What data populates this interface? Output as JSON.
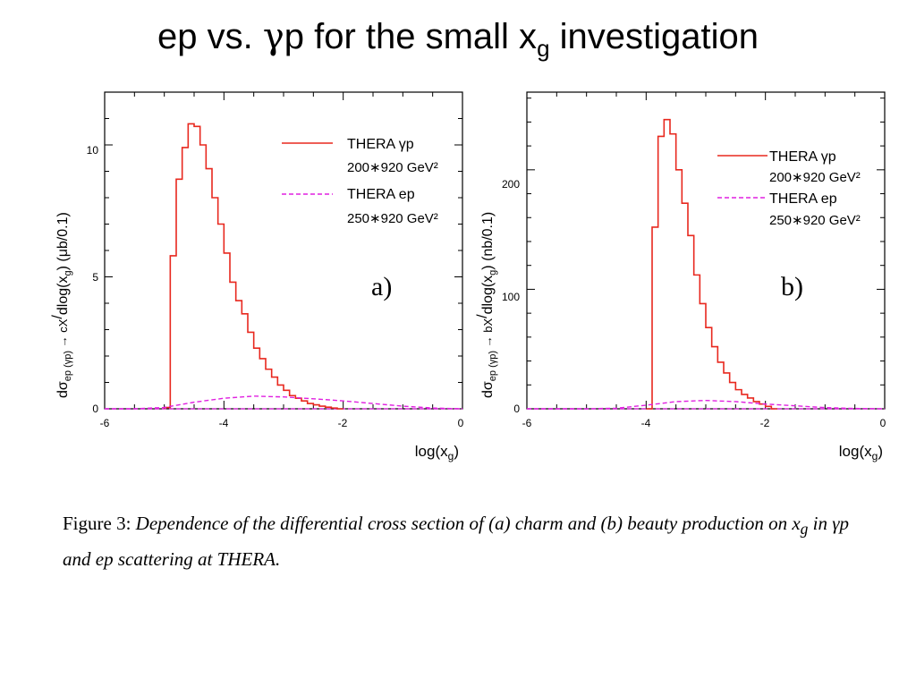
{
  "slide": {
    "title_prefix": "ep vs. ",
    "title_gamma": "γ",
    "title_mid": "p for the small x",
    "title_sub": "g",
    "title_suffix": " investigation"
  },
  "caption": {
    "label": "Figure 3:",
    "text": "Dependence of the differential cross section of (a) charm and (b) beauty production on x",
    "sub": "g",
    "text_end": " in γp and ep scattering at THERA."
  },
  "chart_data": [
    {
      "panel": "a)",
      "type": "line",
      "ylabel": "dσep (γp) → cX/dlog(xg)   (μb/0.1)",
      "xlabel": "log(xg)",
      "xlim": [
        -6,
        0
      ],
      "ylim": [
        0,
        12
      ],
      "xticks": [
        "-6",
        "-4",
        "-2",
        "0"
      ],
      "yticks": [
        "0",
        "5",
        "10"
      ],
      "legend_position": "top-right",
      "series": [
        {
          "name": "THERA γp",
          "energy": "200∗920 GeV²",
          "style": "solid",
          "color": "#e8281e",
          "x": [
            -5.0,
            -4.9,
            -4.8,
            -4.7,
            -4.6,
            -4.5,
            -4.4,
            -4.3,
            -4.2,
            -4.1,
            -4.0,
            -3.9,
            -3.8,
            -3.7,
            -3.6,
            -3.5,
            -3.4,
            -3.3,
            -3.2,
            -3.1,
            -3.0,
            -2.9,
            -2.8,
            -2.7,
            -2.6,
            -2.5,
            -2.4,
            -2.3,
            -2.2,
            -2.1
          ],
          "values": [
            0.05,
            5.8,
            8.7,
            9.9,
            10.8,
            10.7,
            10.0,
            9.1,
            8.0,
            7.0,
            5.9,
            4.8,
            4.1,
            3.6,
            2.9,
            2.3,
            1.9,
            1.5,
            1.2,
            0.9,
            0.7,
            0.5,
            0.4,
            0.3,
            0.2,
            0.15,
            0.1,
            0.06,
            0.03,
            0.0
          ]
        },
        {
          "name": "THERA ep",
          "energy": "250∗920 GeV²",
          "style": "dashed",
          "color": "#e020e0",
          "x": [
            -6,
            -5.5,
            -5.0,
            -4.5,
            -4.0,
            -3.5,
            -3.0,
            -2.5,
            -2.0,
            -1.5,
            -1.0,
            -0.5,
            0
          ],
          "values": [
            0,
            0.0,
            0.05,
            0.25,
            0.4,
            0.48,
            0.45,
            0.38,
            0.3,
            0.2,
            0.1,
            0.03,
            0
          ]
        }
      ]
    },
    {
      "panel": "b)",
      "type": "line",
      "ylabel": "dσep (γp) → bX/dlog(xg)   (nb/0.1)",
      "xlabel": "log(xg)",
      "xlim": [
        -6,
        0
      ],
      "ylim": [
        0,
        265
      ],
      "xticks": [
        "-6",
        "-4",
        "-2",
        "0"
      ],
      "yticks": [
        "0",
        "100",
        "200"
      ],
      "legend_position": "top-right",
      "series": [
        {
          "name": "THERA γp",
          "energy": "200∗920 GeV²",
          "style": "solid",
          "color": "#e8281e",
          "x": [
            -4.0,
            -3.9,
            -3.8,
            -3.7,
            -3.6,
            -3.5,
            -3.4,
            -3.3,
            -3.2,
            -3.1,
            -3.0,
            -2.9,
            -2.8,
            -2.7,
            -2.6,
            -2.5,
            -2.4,
            -2.3,
            -2.2,
            -2.1,
            -2.0,
            -1.9
          ],
          "values": [
            0,
            152,
            228,
            242,
            230,
            200,
            172,
            145,
            112,
            88,
            68,
            52,
            39,
            30,
            22,
            16,
            12,
            9,
            6,
            4,
            2,
            0
          ]
        },
        {
          "name": "THERA ep",
          "energy": "250∗920 GeV²",
          "style": "dashed",
          "color": "#e020e0",
          "x": [
            -6,
            -5,
            -4.5,
            -4.0,
            -3.5,
            -3.0,
            -2.5,
            -2.0,
            -1.5,
            -1.0,
            -0.5,
            0
          ],
          "values": [
            0,
            0,
            0.5,
            3,
            6,
            7,
            6,
            4,
            2.5,
            1,
            0.3,
            0
          ]
        }
      ]
    }
  ]
}
